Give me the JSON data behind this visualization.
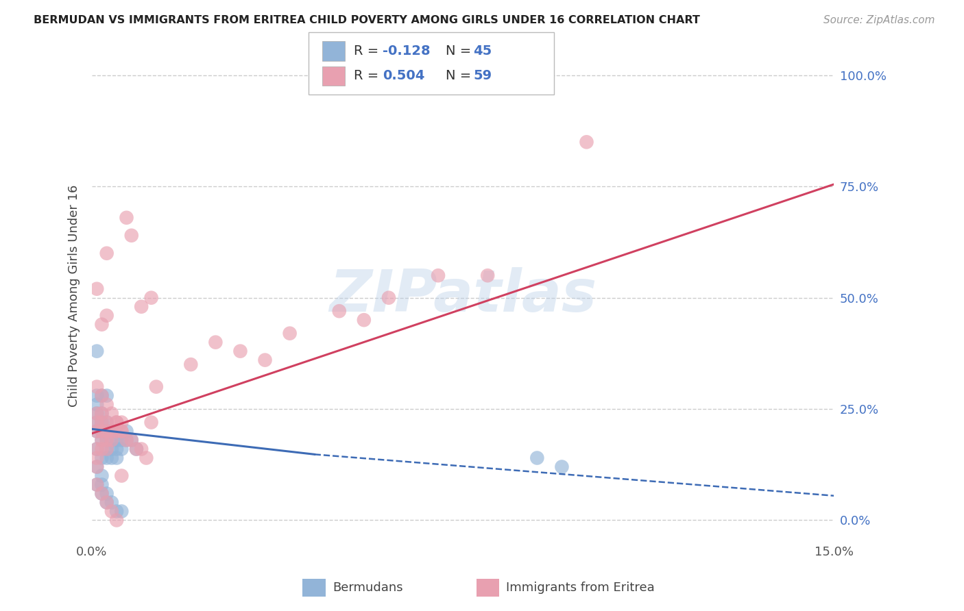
{
  "title": "BERMUDAN VS IMMIGRANTS FROM ERITREA CHILD POVERTY AMONG GIRLS UNDER 16 CORRELATION CHART",
  "source": "Source: ZipAtlas.com",
  "ylabel": "Child Poverty Among Girls Under 16",
  "x_min": 0.0,
  "x_max": 0.15,
  "y_min": -0.04,
  "y_max": 1.05,
  "y_ticks_right": [
    0.0,
    0.25,
    0.5,
    0.75,
    1.0
  ],
  "y_tick_labels_right": [
    "0.0%",
    "25.0%",
    "50.0%",
    "75.0%",
    "100.0%"
  ],
  "grid_color": "#cccccc",
  "bg_color": "#ffffff",
  "watermark": "ZIPatlas",
  "blue_color": "#92b4d8",
  "pink_color": "#e8a0b0",
  "blue_line_color": "#3d6bb5",
  "pink_line_color": "#d04060",
  "legend_label_blue": "Bermudans",
  "legend_label_pink": "Immigrants from Eritrea",
  "label_color": "#4472c4",
  "title_color": "#222222",
  "source_color": "#999999",
  "blue_scatter_x": [
    0.001,
    0.001,
    0.001,
    0.001,
    0.001,
    0.001,
    0.002,
    0.002,
    0.002,
    0.002,
    0.002,
    0.002,
    0.003,
    0.003,
    0.003,
    0.003,
    0.003,
    0.004,
    0.004,
    0.004,
    0.004,
    0.005,
    0.005,
    0.005,
    0.006,
    0.006,
    0.007,
    0.007,
    0.008,
    0.009,
    0.001,
    0.002,
    0.003,
    0.001,
    0.002,
    0.002,
    0.003,
    0.004,
    0.003,
    0.004,
    0.005,
    0.006,
    0.09,
    0.095,
    0.001
  ],
  "blue_scatter_y": [
    0.2,
    0.22,
    0.24,
    0.26,
    0.16,
    0.12,
    0.2,
    0.22,
    0.24,
    0.18,
    0.14,
    0.1,
    0.2,
    0.22,
    0.18,
    0.16,
    0.14,
    0.2,
    0.18,
    0.16,
    0.14,
    0.18,
    0.16,
    0.14,
    0.18,
    0.16,
    0.2,
    0.18,
    0.18,
    0.16,
    0.28,
    0.28,
    0.28,
    0.08,
    0.08,
    0.06,
    0.06,
    0.2,
    0.04,
    0.04,
    0.02,
    0.02,
    0.14,
    0.12,
    0.38
  ],
  "pink_scatter_x": [
    0.001,
    0.001,
    0.001,
    0.001,
    0.001,
    0.001,
    0.002,
    0.002,
    0.002,
    0.002,
    0.002,
    0.003,
    0.003,
    0.003,
    0.003,
    0.004,
    0.004,
    0.005,
    0.005,
    0.006,
    0.006,
    0.007,
    0.008,
    0.009,
    0.01,
    0.011,
    0.012,
    0.013,
    0.02,
    0.025,
    0.03,
    0.035,
    0.04,
    0.05,
    0.055,
    0.06,
    0.07,
    0.08,
    0.1,
    0.001,
    0.002,
    0.003,
    0.004,
    0.005,
    0.006,
    0.001,
    0.002,
    0.003,
    0.002,
    0.003,
    0.004,
    0.005,
    0.006,
    0.007,
    0.008,
    0.01,
    0.012,
    0.001,
    0.003
  ],
  "pink_scatter_y": [
    0.2,
    0.22,
    0.24,
    0.16,
    0.14,
    0.12,
    0.2,
    0.22,
    0.24,
    0.18,
    0.16,
    0.2,
    0.22,
    0.18,
    0.16,
    0.2,
    0.18,
    0.22,
    0.2,
    0.22,
    0.2,
    0.18,
    0.18,
    0.16,
    0.16,
    0.14,
    0.22,
    0.3,
    0.35,
    0.4,
    0.38,
    0.36,
    0.42,
    0.47,
    0.45,
    0.5,
    0.55,
    0.55,
    0.85,
    0.3,
    0.28,
    0.26,
    0.24,
    0.22,
    0.2,
    0.08,
    0.06,
    0.04,
    0.44,
    0.46,
    0.02,
    0.0,
    0.1,
    0.68,
    0.64,
    0.48,
    0.5,
    0.52,
    0.6
  ]
}
